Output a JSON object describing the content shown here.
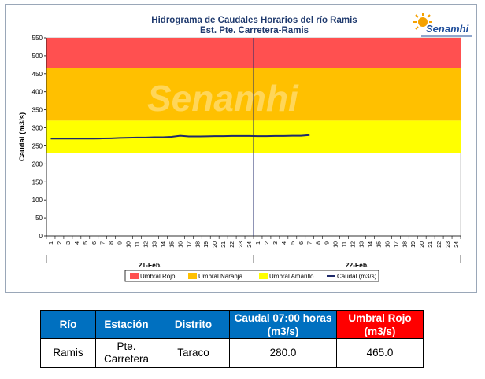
{
  "chart_data": {
    "type": "line",
    "title": "Hidrograma de Caudales Horarios del río Ramis",
    "subtitle": "Est. Pte. Carretera-Ramis",
    "ylabel": "Caudal  (m3/s)",
    "ylim": [
      0,
      550
    ],
    "yticks": [
      0,
      50,
      100,
      150,
      200,
      250,
      300,
      350,
      400,
      450,
      500,
      550
    ],
    "x_hour_ticks": [
      "1",
      "2",
      "3",
      "4",
      "5",
      "6",
      "7",
      "8",
      "9",
      "10",
      "11",
      "12",
      "13",
      "14",
      "15",
      "16",
      "17",
      "18",
      "19",
      "20",
      "21",
      "22",
      "23",
      "24",
      "1",
      "2",
      "3",
      "4",
      "5",
      "6",
      "7",
      "8",
      "9",
      "10",
      "11",
      "12",
      "13",
      "14",
      "15",
      "16",
      "17",
      "18",
      "19",
      "20",
      "21",
      "22",
      "23",
      "24"
    ],
    "day_labels": [
      "21-Feb.",
      "22-Feb."
    ],
    "thresholds": [
      {
        "name": "Umbral Rojo",
        "from": 465,
        "to": 550,
        "color": "#ff5050"
      },
      {
        "name": "Umbral Naranja",
        "from": 320,
        "to": 465,
        "color": "#ffc000"
      },
      {
        "name": "Umbral Amarillo",
        "from": 230,
        "to": 320,
        "color": "#ffff00"
      }
    ],
    "series": [
      {
        "name": "Caudal (m3/s)",
        "color": "#1f2a6b",
        "values": [
          270,
          270,
          270,
          270,
          270,
          270,
          270.5,
          271,
          272,
          272.5,
          273,
          273,
          274,
          274,
          275,
          278,
          276,
          276,
          276.5,
          277,
          277,
          277.5,
          277.5,
          277.5,
          277,
          277,
          277.5,
          277.5,
          278,
          278,
          280
        ]
      }
    ],
    "legend_position": "bottom",
    "grid": false
  },
  "watermark": "Senamhi",
  "logo": {
    "text": "Senamhi"
  },
  "table": {
    "headers": [
      "Río",
      "Estación",
      "Distrito",
      "Caudal  07:00 horas (m3/s)",
      "Umbral Rojo (m3/s)"
    ],
    "row": [
      "Ramis",
      "Pte. Carretera",
      "Taraco",
      "280.0",
      "465.0"
    ]
  }
}
